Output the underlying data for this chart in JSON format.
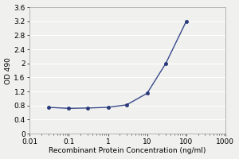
{
  "x": [
    0.03,
    0.1,
    0.3,
    1.0,
    3.0,
    10.0,
    30.0,
    100.0
  ],
  "y": [
    0.75,
    0.72,
    0.73,
    0.75,
    0.82,
    1.15,
    2.0,
    3.2
  ],
  "xlim": [
    0.01,
    1000
  ],
  "ylim": [
    0,
    3.6
  ],
  "yticks": [
    0,
    0.4,
    0.8,
    1.2,
    1.6,
    2.0,
    2.4,
    2.8,
    3.2,
    3.6
  ],
  "ytick_labels": [
    "0",
    "0.4",
    "0.8",
    "1.2",
    "1.6",
    "2",
    "2.4",
    "2.8",
    "3.2",
    "3.6"
  ],
  "xtick_labels": [
    "0.01",
    "0.1",
    "1",
    "10",
    "100",
    "1000"
  ],
  "xtick_vals": [
    0.01,
    0.1,
    1,
    10,
    100,
    1000
  ],
  "xlabel": "Recombinant Protein Concentration (ng/ml)",
  "ylabel": "OD 490",
  "line_color": "#3a4a8a",
  "marker_color": "#2a3a7a",
  "bg_color": "#f0f0ee",
  "plot_bg_color": "#f0f0ee",
  "grid_color": "#ffffff",
  "spine_color": "#aaaaaa",
  "label_fontsize": 6.5,
  "tick_fontsize": 6.5
}
